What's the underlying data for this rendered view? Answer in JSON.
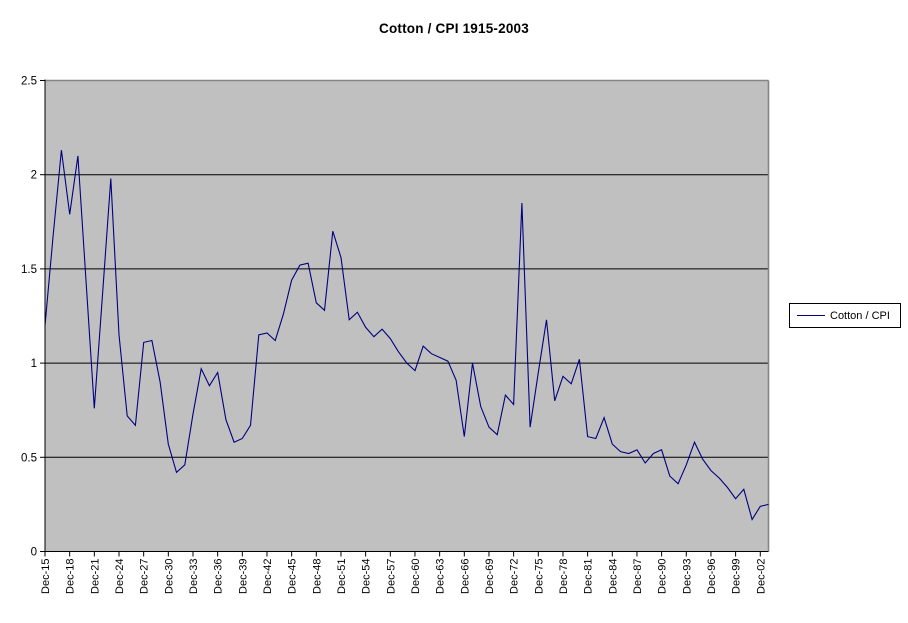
{
  "chart_data": {
    "type": "line",
    "title": "Cotton / CPI 1915-2003",
    "xlabel": "",
    "ylabel": "",
    "x_start_year": 1915,
    "x_end_year": 2003,
    "x_tick_interval": 3,
    "x_tick_labels": [
      "Dec-15",
      "Dec-18",
      "Dec-21",
      "Dec-24",
      "Dec-27",
      "Dec-30",
      "Dec-33",
      "Dec-36",
      "Dec-39",
      "Dec-42",
      "Dec-45",
      "Dec-48",
      "Dec-51",
      "Dec-54",
      "Dec-57",
      "Dec-60",
      "Dec-63",
      "Dec-66",
      "Dec-69",
      "Dec-72",
      "Dec-75",
      "Dec-78",
      "Dec-81",
      "Dec-84",
      "Dec-87",
      "Dec-90",
      "Dec-93",
      "Dec-96",
      "Dec-99",
      "Dec-02"
    ],
    "ylim": [
      0,
      2.5
    ],
    "y_tick_labels": [
      "0",
      "0.5",
      "1",
      "1.5",
      "2",
      "2.5"
    ],
    "grid": "horizontal",
    "legend_position": "right",
    "plot_bg": "#c0c0c0",
    "grid_color": "#000000",
    "plot_border_color": "#848484",
    "axis_color": "#000000",
    "series": [
      {
        "name": "Cotton / CPI",
        "color": "#000080",
        "values": [
          1.2,
          1.68,
          2.13,
          1.79,
          2.1,
          1.43,
          0.76,
          1.37,
          1.98,
          1.15,
          0.72,
          0.67,
          1.11,
          1.12,
          0.9,
          0.57,
          0.42,
          0.46,
          0.73,
          0.97,
          0.88,
          0.95,
          0.7,
          0.58,
          0.6,
          0.67,
          1.15,
          1.16,
          1.12,
          1.26,
          1.44,
          1.52,
          1.53,
          1.32,
          1.28,
          1.7,
          1.56,
          1.23,
          1.27,
          1.19,
          1.14,
          1.18,
          1.13,
          1.06,
          1.0,
          0.96,
          1.09,
          1.05,
          1.03,
          1.01,
          0.91,
          0.61,
          1.0,
          0.77,
          0.66,
          0.62,
          0.83,
          0.78,
          1.85,
          0.66,
          0.95,
          1.23,
          0.8,
          0.93,
          0.89,
          1.02,
          0.61,
          0.6,
          0.71,
          0.57,
          0.53,
          0.52,
          0.54,
          0.47,
          0.52,
          0.54,
          0.4,
          0.36,
          0.46,
          0.58,
          0.49,
          0.43,
          0.39,
          0.34,
          0.28,
          0.33,
          0.17,
          0.24,
          0.25
        ]
      }
    ]
  },
  "legend": {
    "label": "Cotton / CPI"
  }
}
